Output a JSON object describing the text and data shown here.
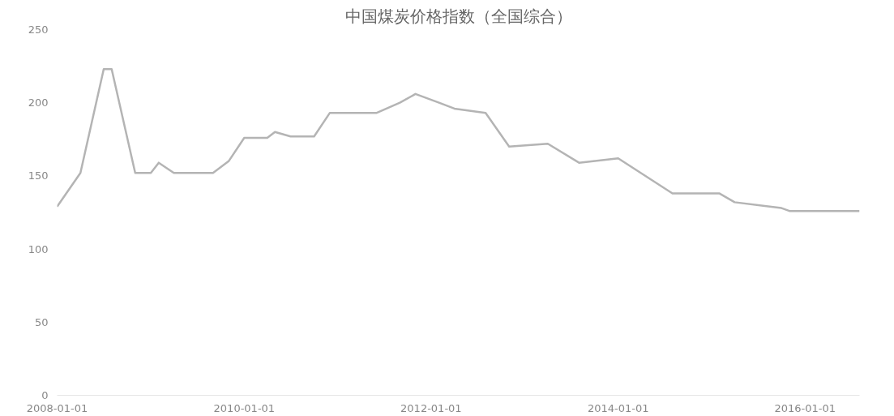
{
  "chart_data": {
    "type": "line",
    "title": "中国煤炭价格指数（全国综合）",
    "x": [
      "2008-01",
      "2008-04",
      "2008-07",
      "2008-08",
      "2008-11",
      "2009-01",
      "2009-02",
      "2009-04",
      "2009-09",
      "2009-11",
      "2010-01",
      "2010-04",
      "2010-05",
      "2010-07",
      "2010-10",
      "2010-12",
      "2011-06",
      "2011-09",
      "2011-11",
      "2012-02",
      "2012-04",
      "2012-08",
      "2012-11",
      "2013-04",
      "2013-08",
      "2014-01",
      "2014-08",
      "2015-02",
      "2015-04",
      "2015-10",
      "2015-11",
      "2016-08"
    ],
    "series": [
      {
        "color": "#b4b4b4",
        "values": [
          129,
          152,
          223,
          223,
          152,
          152,
          159,
          152,
          152,
          160,
          176,
          176,
          180,
          177,
          177,
          193,
          193,
          200,
          206,
          200,
          196,
          193,
          170,
          172,
          159,
          162,
          138,
          138,
          132,
          128,
          126,
          126
        ]
      }
    ],
    "xlim": [
      "2008-01",
      "2016-08"
    ],
    "xticks": [
      "2008-01-01",
      "2010-01-01",
      "2012-01-01",
      "2014-01-01",
      "2016-01-01"
    ],
    "ylim": [
      0,
      250
    ],
    "yticks": [
      0,
      50,
      100,
      150,
      200,
      250
    ],
    "grid": false,
    "marker": "none",
    "line_style": "solid"
  }
}
